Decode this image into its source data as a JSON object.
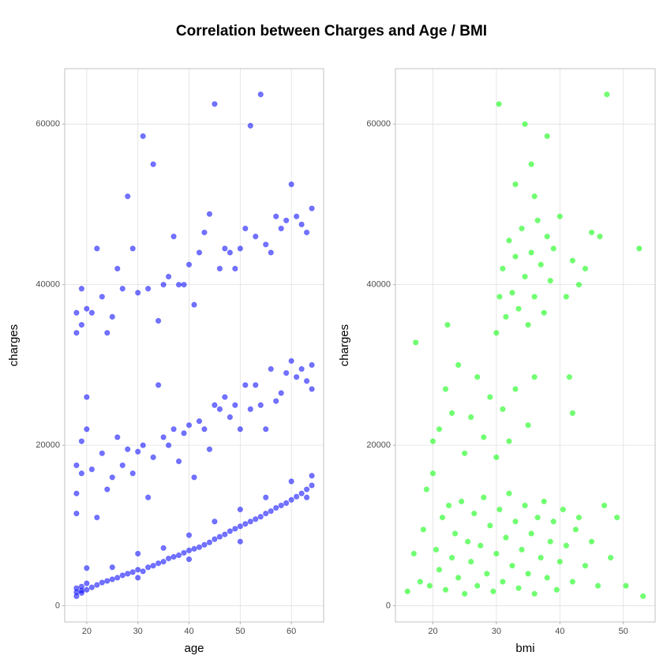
{
  "title": "Correlation between Charges and Age / BMI",
  "chart_data": [
    {
      "type": "scatter",
      "xlabel": "age",
      "ylabel": "charges",
      "color": "#0000ff",
      "xlim": [
        15.7,
        66.3
      ],
      "ylim": [
        -2010,
        66902
      ],
      "xticks": [
        20,
        30,
        40,
        50,
        60
      ],
      "yticks": [
        0,
        20000,
        40000,
        60000
      ],
      "grid": true,
      "x": [
        18,
        18,
        18,
        19,
        19,
        19,
        20,
        20,
        21,
        22,
        23,
        24,
        25,
        26,
        27,
        28,
        29,
        30,
        31,
        32,
        33,
        34,
        35,
        36,
        37,
        38,
        39,
        40,
        41,
        42,
        43,
        44,
        45,
        46,
        47,
        48,
        49,
        50,
        51,
        52,
        53,
        54,
        55,
        56,
        57,
        58,
        59,
        60,
        61,
        62,
        63,
        64,
        64,
        63,
        25,
        30,
        35,
        45,
        50,
        55,
        60,
        20,
        40,
        50,
        30,
        40,
        18,
        18,
        18,
        19,
        19,
        20,
        20,
        21,
        22,
        23,
        24,
        25,
        26,
        27,
        28,
        29,
        30,
        31,
        32,
        33,
        34,
        35,
        36,
        37,
        38,
        39,
        40,
        41,
        42,
        43,
        44,
        45,
        46,
        47,
        48,
        49,
        50,
        51,
        52,
        53,
        54,
        55,
        56,
        57,
        58,
        59,
        60,
        61,
        62,
        63,
        64,
        64,
        18,
        18,
        19,
        19,
        20,
        21,
        22,
        23,
        24,
        25,
        26,
        27,
        28,
        29,
        30,
        31,
        32,
        33,
        34,
        35,
        36,
        37,
        38,
        39,
        40,
        41,
        42,
        43,
        44,
        45,
        46,
        47,
        48,
        49,
        50,
        51,
        52,
        53,
        54,
        55,
        56,
        57,
        58,
        59,
        60,
        61,
        62,
        63,
        64
      ],
      "values": [
        1200,
        1700,
        2200,
        1600,
        2400,
        1900,
        2000,
        2800,
        2300,
        2600,
        2900,
        3100,
        3300,
        3500,
        3800,
        4000,
        4200,
        4500,
        4300,
        4800,
        5000,
        5300,
        5500,
        5900,
        6100,
        6300,
        6600,
        6900,
        7100,
        7300,
        7600,
        7900,
        8300,
        8600,
        8900,
        9300,
        9600,
        9900,
        10200,
        10500,
        10800,
        11100,
        11500,
        11800,
        12200,
        12500,
        12800,
        13200,
        13600,
        14000,
        14500,
        15000,
        16200,
        13500,
        4800,
        6500,
        7200,
        10500,
        12000,
        13500,
        15500,
        4700,
        8800,
        8000,
        3500,
        5800,
        14000,
        11500,
        17500,
        16500,
        20500,
        26000,
        22000,
        17000,
        11000,
        19000,
        14500,
        16000,
        21000,
        17500,
        19500,
        16500,
        19200,
        20000,
        13500,
        18500,
        27500,
        21000,
        20000,
        22000,
        18000,
        21500,
        22500,
        16000,
        23000,
        22000,
        19500,
        25000,
        24500,
        26000,
        23500,
        25000,
        22000,
        27500,
        24500,
        27500,
        25000,
        22000,
        29500,
        25500,
        26500,
        29000,
        30500,
        28500,
        29500,
        28000,
        27000,
        30000,
        36500,
        34000,
        35000,
        39500,
        37000,
        36500,
        44500,
        38500,
        34000,
        36000,
        42000,
        39500,
        51000,
        44500,
        39000,
        58500,
        39500,
        55000,
        35500,
        40000,
        41000,
        46000,
        40000,
        40000,
        42500,
        37500,
        44000,
        46500,
        48800,
        62500,
        42000,
        44500,
        44000,
        42000,
        44500,
        47000,
        59800,
        46000,
        63700,
        45000,
        44000,
        48500,
        47000,
        48000,
        52500,
        48500,
        47500,
        46500,
        49500
      ]
    },
    {
      "type": "scatter",
      "xlabel": "bmi",
      "ylabel": "charges",
      "color": "#00ff00",
      "xlim": [
        14.1,
        55.0
      ],
      "ylim": [
        -2010,
        66902
      ],
      "xticks": [
        20,
        30,
        40,
        50
      ],
      "yticks": [
        0,
        20000,
        40000,
        60000
      ],
      "grid": true,
      "x": [
        16,
        17,
        18,
        18.5,
        19,
        19.5,
        20,
        20.5,
        21,
        21.5,
        22,
        22.5,
        23,
        23.5,
        24,
        24.5,
        25,
        25.5,
        26,
        26.5,
        27,
        27.5,
        28,
        28.5,
        29,
        29.5,
        30,
        30.5,
        31,
        31.5,
        32,
        32.5,
        33,
        33.5,
        34,
        34.5,
        35,
        35.5,
        36,
        36.5,
        37,
        37.5,
        38,
        38.5,
        39,
        39.5,
        40,
        40.5,
        41,
        42,
        42.5,
        43,
        44,
        45,
        46,
        47,
        48,
        49,
        50.4,
        53.1,
        20,
        21,
        22,
        23,
        24,
        25,
        26,
        27,
        28,
        29,
        30,
        31,
        32,
        33,
        35,
        36,
        42,
        41.5,
        17.3,
        22.3,
        30,
        30.5,
        31,
        31.5,
        32,
        32.5,
        33,
        33.5,
        34,
        34.5,
        35,
        35.5,
        36,
        36.5,
        37,
        37.5,
        38,
        38.5,
        39,
        40,
        41,
        42,
        43,
        44,
        46.3,
        45,
        52.5,
        47.4,
        30.4,
        34.5,
        38,
        35.5,
        33,
        36
      ],
      "values": [
        1800,
        6500,
        3000,
        9500,
        14500,
        2500,
        16500,
        7000,
        4500,
        11000,
        2000,
        12500,
        6000,
        9000,
        3500,
        13000,
        1500,
        8000,
        5500,
        11500,
        2500,
        7500,
        13500,
        4000,
        10000,
        1800,
        6500,
        12000,
        3000,
        8500,
        14000,
        5000,
        10500,
        2200,
        7000,
        12500,
        4000,
        9000,
        1500,
        11000,
        6000,
        13000,
        3500,
        8000,
        10500,
        2000,
        5500,
        12000,
        7500,
        3000,
        9500,
        11000,
        5000,
        8000,
        2500,
        12500,
        6000,
        11000,
        2500,
        1200,
        20500,
        22000,
        27000,
        24000,
        30000,
        19000,
        23500,
        28500,
        21000,
        26000,
        18500,
        24500,
        20500,
        27000,
        22500,
        28500,
        24000,
        28500,
        32800,
        35000,
        34000,
        38500,
        42000,
        36000,
        45500,
        39000,
        43500,
        37000,
        47000,
        41000,
        35000,
        44000,
        38500,
        48000,
        42500,
        36500,
        46000,
        40500,
        44500,
        48500,
        38500,
        43000,
        40000,
        42000,
        46000,
        46500,
        44500,
        63700,
        62500,
        60000,
        58500,
        55000,
        52500,
        51000
      ]
    }
  ]
}
